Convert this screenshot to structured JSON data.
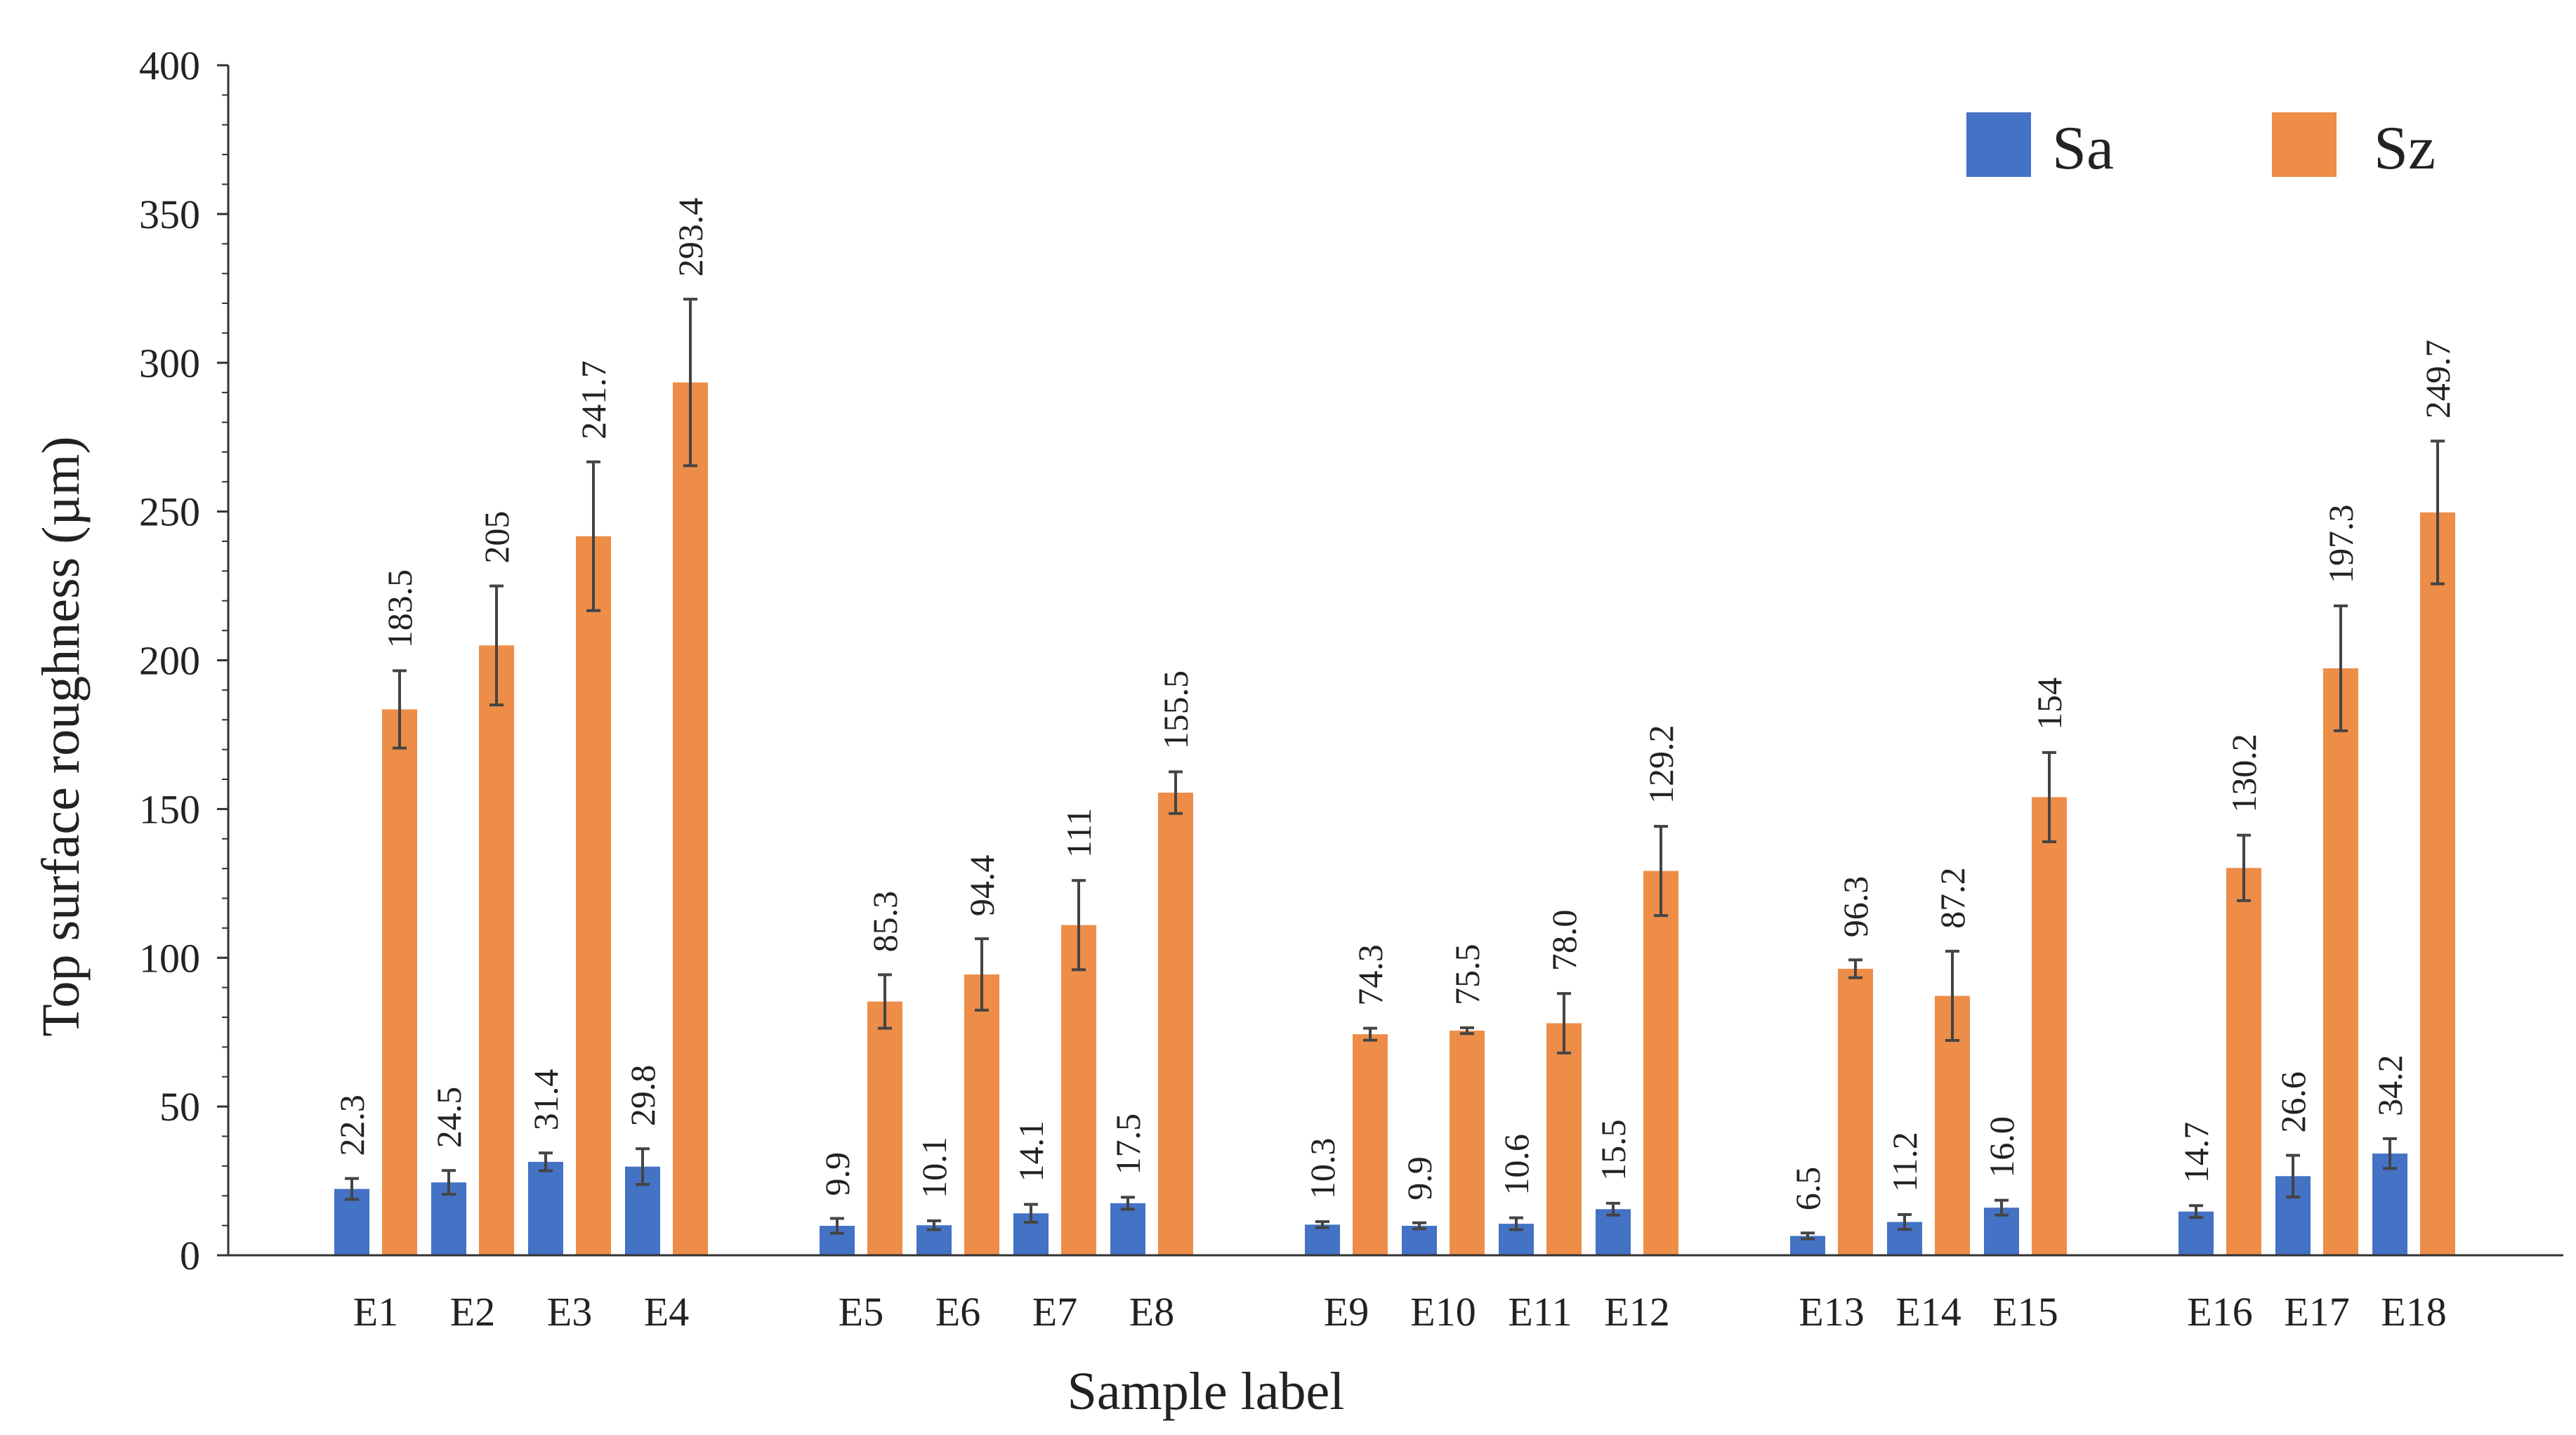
{
  "chart_data": {
    "type": "bar",
    "title": "",
    "xlabel": "Sample label",
    "ylabel": "Top surface roughness (µm)",
    "ylim": [
      0,
      400
    ],
    "yticks": [
      0,
      50,
      100,
      150,
      200,
      250,
      300,
      350,
      400
    ],
    "grid": false,
    "legend_position": "top-right",
    "categories": [
      "E1",
      "E2",
      "E3",
      "E4",
      "E5",
      "E6",
      "E7",
      "E8",
      "E9",
      "E10",
      "E11",
      "E12",
      "E13",
      "E14",
      "E15",
      "E16",
      "E17",
      "E18"
    ],
    "groups": [
      4,
      4,
      4,
      3,
      3
    ],
    "series": [
      {
        "name": "Sa",
        "color": "#4472C4",
        "values": [
          22.3,
          24.5,
          31.4,
          29.8,
          9.9,
          10.1,
          14.1,
          17.5,
          10.3,
          9.9,
          10.6,
          15.5,
          6.5,
          11.2,
          16.0,
          14.7,
          26.6,
          34.2
        ],
        "labels": [
          "22.3",
          "24.5",
          "31.4",
          "29.8",
          "9.9",
          "10.1",
          "14.1",
          "17.5",
          "10.3",
          "9.9",
          "10.6",
          "15.5",
          "6.5",
          "11.2",
          "16.0",
          "14.7",
          "26.6",
          "34.2"
        ],
        "errors": [
          3.5,
          4,
          3,
          6,
          2.5,
          1.5,
          3,
          2,
          1,
          1,
          2,
          2,
          1,
          2.5,
          2.5,
          2,
          7,
          5
        ]
      },
      {
        "name": "Sz",
        "color": "#ED8D48",
        "values": [
          183.5,
          205,
          241.7,
          293.4,
          85.3,
          94.4,
          111,
          155.5,
          74.3,
          75.5,
          78.0,
          129.2,
          96.3,
          87.2,
          154,
          130.2,
          197.3,
          249.7
        ],
        "labels": [
          "183.5",
          "205",
          "241.7",
          "293.4",
          "85.3",
          "94.4",
          "111",
          "155.5",
          "74.3",
          "75.5",
          "78.0",
          "129.2",
          "96.3",
          "87.2",
          "154",
          "130.2",
          "197.3",
          "249.7"
        ],
        "errors": [
          13,
          20,
          25,
          28,
          9,
          12,
          15,
          7,
          2,
          1,
          10,
          15,
          3,
          15,
          15,
          11,
          21,
          24
        ]
      }
    ]
  }
}
